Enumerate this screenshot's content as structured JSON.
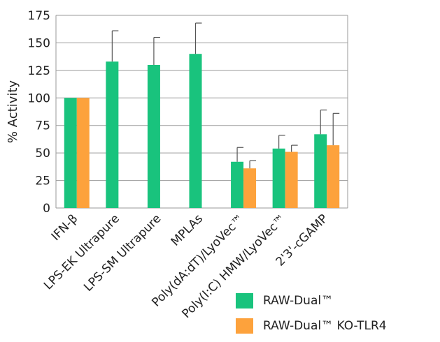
{
  "chart_data": {
    "type": "bar",
    "title": "",
    "xlabel": "",
    "ylabel": "% Activity",
    "ylim": [
      0,
      175
    ],
    "yticks": [
      0,
      25,
      50,
      75,
      100,
      125,
      150,
      175
    ],
    "grid": true,
    "categories": [
      "IFN-β",
      "LPS-EK Ultrapure",
      "LPS-SM Ultrapure",
      "MPLAs",
      "Poly(dA:dT)/LyoVec™",
      "Poly(I:C) HMW/LyoVec™",
      "2'3'-cGAMP"
    ],
    "series": [
      {
        "name": "RAW-Dual™",
        "color": "#19c37d",
        "values": [
          100,
          133,
          130,
          140,
          42,
          54,
          67
        ],
        "errors": [
          0,
          28,
          25,
          28,
          13,
          12,
          22
        ]
      },
      {
        "name": "RAW-Dual™ KO-TLR4",
        "color": "#fda23c",
        "values": [
          100,
          null,
          null,
          null,
          36,
          51,
          57
        ],
        "errors": [
          0,
          null,
          null,
          null,
          7,
          6,
          29
        ]
      }
    ],
    "legend_position": "bottom-right"
  }
}
